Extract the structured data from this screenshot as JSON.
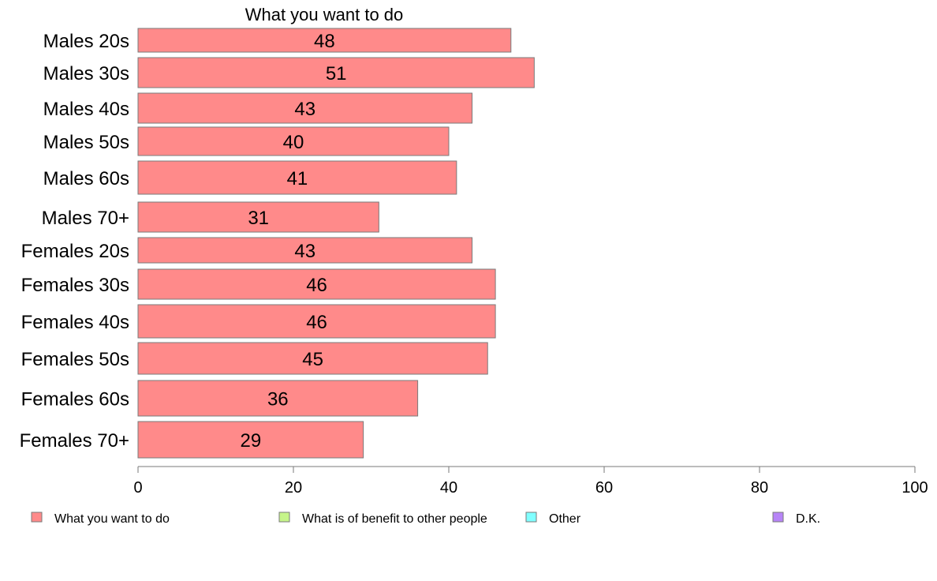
{
  "chart_data": {
    "type": "bar",
    "orientation": "horizontal",
    "title": "What you want to do",
    "categories": [
      "Males 20s",
      "Males 30s",
      "Males 40s",
      "Males 50s",
      "Males 60s",
      "Males 70+",
      "Females 20s",
      "Females 30s",
      "Females 40s",
      "Females 50s",
      "Females 60s",
      "Females 70+"
    ],
    "values": [
      48,
      51,
      43,
      40,
      41,
      31,
      43,
      46,
      46,
      45,
      36,
      29
    ],
    "value_labels": [
      "48",
      "51",
      "43",
      "40",
      "41",
      "31",
      "43",
      "46",
      "46",
      "45",
      "36",
      "29"
    ],
    "xlim": [
      0,
      100
    ],
    "xticks": [
      0,
      20,
      40,
      60,
      80,
      100
    ],
    "xtick_labels": [
      "0",
      "20",
      "40",
      "60",
      "80",
      "100"
    ],
    "grid": false,
    "bar_color": "#ff8a8a",
    "legend": {
      "placement": "bottom",
      "entries": [
        {
          "label": "What you want to do",
          "color": "#ff8a8a"
        },
        {
          "label": "What is of benefit to other people",
          "color": "#c6f58a"
        },
        {
          "label": "Other",
          "color": "#80ffff"
        },
        {
          "label": "D.K.",
          "color": "#b784f7"
        }
      ]
    }
  }
}
